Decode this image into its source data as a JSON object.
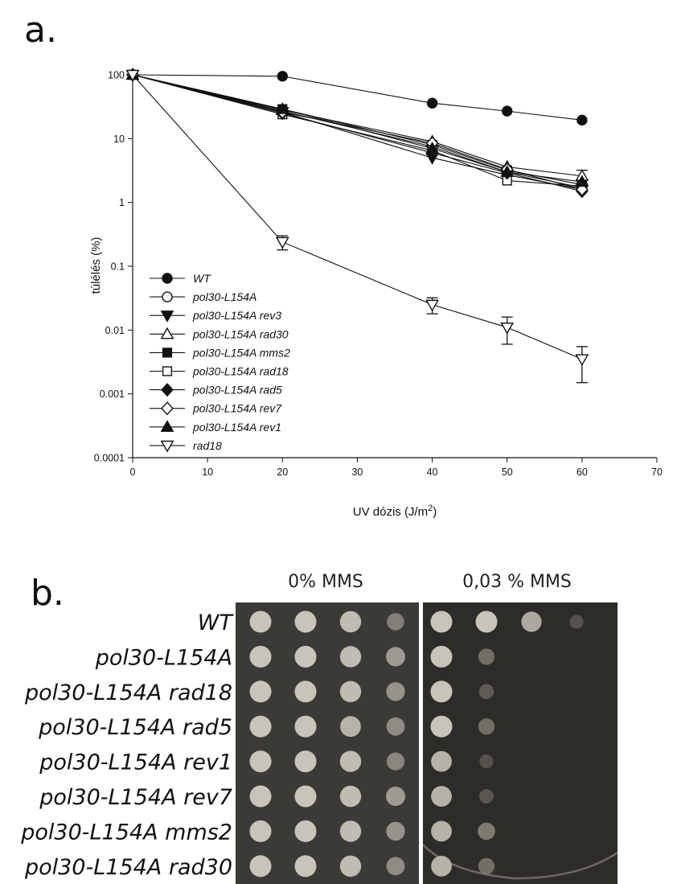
{
  "panels": {
    "a_letter": "a.",
    "b_letter": "b."
  },
  "chart_data": {
    "type": "line",
    "log_y": true,
    "xlabel": "UV dózis (J/m²)",
    "ylabel": "túlélés (%)",
    "xlim": [
      0,
      70
    ],
    "ylim": [
      0.0001,
      100
    ],
    "x_ticks": [
      "0",
      "10",
      "20",
      "30",
      "40",
      "50",
      "60",
      "70"
    ],
    "y_ticks": [
      "0.0001",
      "0.001",
      "0.01",
      "0.1",
      "1",
      "10",
      "100"
    ],
    "legend_position": "bottom-left",
    "x": [
      0,
      20,
      40,
      50,
      60
    ],
    "series": [
      {
        "name": "WT",
        "marker": "circle-filled",
        "values": [
          100,
          95,
          36,
          27,
          19.5
        ],
        "errors": [
          0,
          0,
          0,
          0,
          0
        ]
      },
      {
        "name": "pol30-L154A",
        "marker": "circle-open",
        "values": [
          100,
          27,
          7.5,
          3.0,
          1.7
        ],
        "errors": [
          0,
          0,
          0,
          0,
          0
        ]
      },
      {
        "name": "pol30-L154A rev3",
        "marker": "triangle-down-filled",
        "values": [
          100,
          26,
          5.0,
          2.7,
          1.6
        ],
        "errors": [
          0,
          0,
          0,
          0,
          0
        ]
      },
      {
        "name": "pol30-L154A rad30",
        "marker": "triangle-up-open",
        "values": [
          100,
          28,
          9.0,
          3.6,
          2.6
        ],
        "errors": [
          0,
          0,
          0,
          0,
          0.6
        ]
      },
      {
        "name": "pol30-L154A mms2",
        "marker": "square-filled",
        "values": [
          100,
          29,
          8.0,
          3.2,
          1.9
        ],
        "errors": [
          0,
          0,
          0,
          0,
          0
        ]
      },
      {
        "name": "pol30-L154A rad18",
        "marker": "square-open",
        "values": [
          100,
          24,
          6.5,
          2.2,
          1.8
        ],
        "errors": [
          0,
          0,
          0,
          0,
          0
        ]
      },
      {
        "name": "pol30-L154A rad5",
        "marker": "diamond-filled",
        "values": [
          100,
          25,
          6.0,
          2.9,
          1.5
        ],
        "errors": [
          0,
          0,
          0,
          0,
          0
        ]
      },
      {
        "name": "pol30-L154A rev7",
        "marker": "diamond-open",
        "values": [
          100,
          26,
          8.5,
          3.3,
          1.6
        ],
        "errors": [
          0,
          0,
          0,
          0,
          0
        ]
      },
      {
        "name": "pol30-L154A rev1",
        "marker": "triangle-up-filled",
        "values": [
          100,
          29,
          7.0,
          3.0,
          2.1
        ],
        "errors": [
          0,
          0,
          0,
          0,
          0
        ]
      },
      {
        "name": "rad18",
        "marker": "triangle-down-open",
        "values": [
          100,
          0.24,
          0.025,
          0.011,
          0.0035
        ],
        "errors": [
          0,
          0.06,
          0.007,
          0.005,
          0.002
        ]
      }
    ]
  },
  "spot_assay": {
    "conditions": [
      "0% MMS",
      "0,03 % MMS"
    ],
    "strains": [
      "WT",
      "pol30-L154A",
      "pol30-L154A rad18",
      "pol30-L154A rad5",
      "pol30-L154A rev1",
      "pol30-L154A rev7",
      "pol30-L154A mms2",
      "pol30-L154A rad30"
    ],
    "growth_0_mms": [
      [
        1,
        1,
        0.95,
        0.55
      ],
      [
        1,
        1,
        0.95,
        0.75
      ],
      [
        1,
        1,
        0.95,
        0.7
      ],
      [
        1,
        1,
        0.9,
        0.65
      ],
      [
        1,
        1,
        0.95,
        0.6
      ],
      [
        1,
        1,
        0.95,
        0.75
      ],
      [
        1,
        1,
        0.95,
        0.7
      ],
      [
        1,
        1,
        0.95,
        0.65
      ]
    ],
    "growth_003_mms": [
      [
        1,
        1,
        0.85,
        0.2
      ],
      [
        1,
        0.45,
        0,
        0
      ],
      [
        1,
        0.3,
        0,
        0
      ],
      [
        1,
        0.45,
        0,
        0
      ],
      [
        0.9,
        0.2,
        0,
        0
      ],
      [
        0.9,
        0.25,
        0,
        0
      ],
      [
        0.9,
        0.55,
        0,
        0
      ],
      [
        0.9,
        0.45,
        0,
        0
      ]
    ]
  }
}
